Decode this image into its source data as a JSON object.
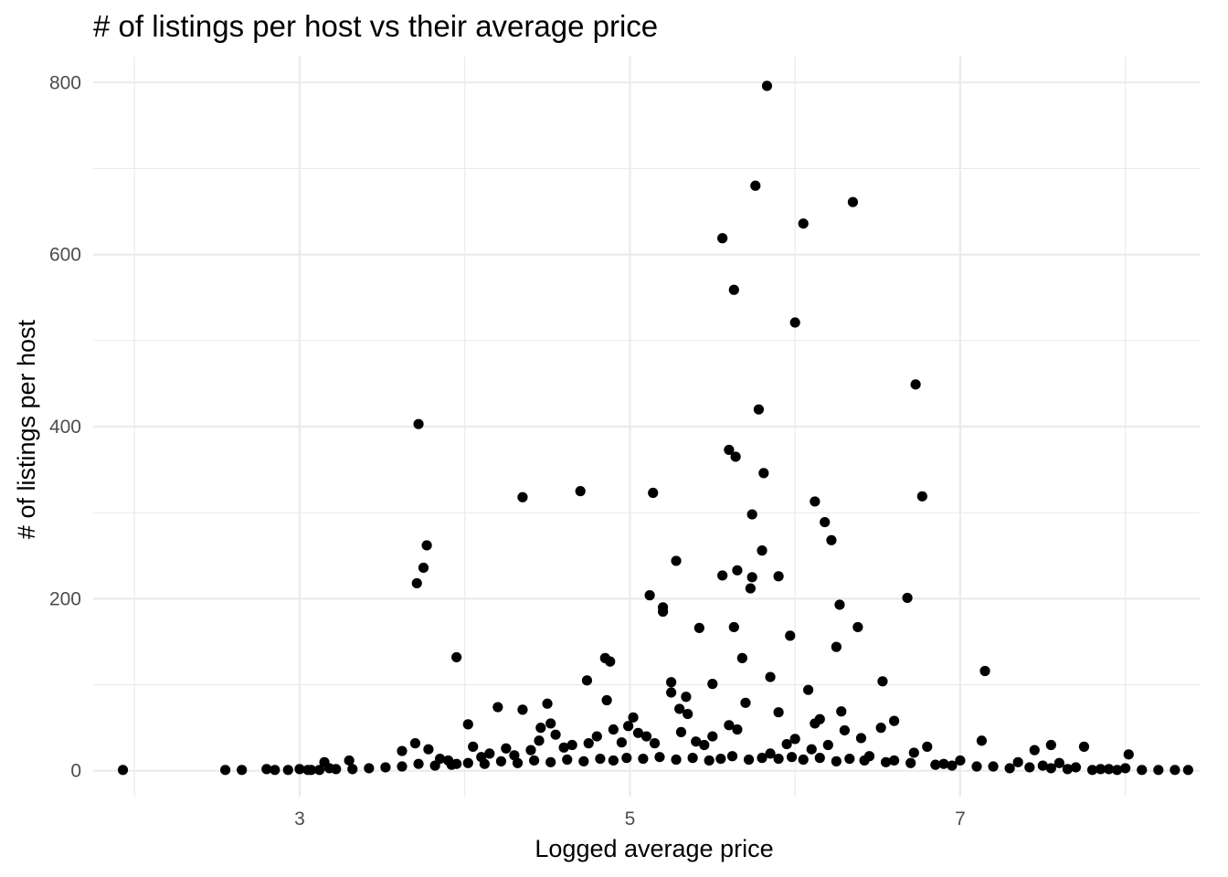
{
  "chart_data": {
    "type": "scatter",
    "title": "# of listings per host vs their average price",
    "xlabel": "Logged average price",
    "ylabel": "# of listings per host",
    "xlim": [
      1.75,
      8.45
    ],
    "ylim": [
      -30,
      830
    ],
    "x_major_ticks": [
      3,
      5,
      7
    ],
    "x_major_tick_labels": [
      "3",
      "5",
      "7"
    ],
    "x_minor_ticks": [
      2,
      4,
      6,
      8
    ],
    "y_major_ticks": [
      0,
      200,
      400,
      600,
      800
    ],
    "y_major_tick_labels": [
      "0",
      "200",
      "400",
      "600",
      "800"
    ],
    "y_minor_ticks": [
      100,
      300,
      500,
      700
    ],
    "grid": true,
    "legend": "none",
    "point_color": "#000000",
    "points": [
      [
        1.93,
        1
      ],
      [
        2.55,
        1
      ],
      [
        2.65,
        1
      ],
      [
        2.8,
        2
      ],
      [
        2.85,
        1
      ],
      [
        2.93,
        1
      ],
      [
        3.0,
        2
      ],
      [
        3.07,
        1
      ],
      [
        3.15,
        10
      ],
      [
        3.3,
        12
      ],
      [
        3.7,
        32
      ],
      [
        3.72,
        403
      ],
      [
        3.71,
        218
      ],
      [
        3.75,
        236
      ],
      [
        3.77,
        262
      ],
      [
        3.62,
        23
      ],
      [
        3.78,
        25
      ],
      [
        3.95,
        132
      ],
      [
        4.02,
        54
      ],
      [
        4.05,
        28
      ],
      [
        4.2,
        74
      ],
      [
        4.35,
        71
      ],
      [
        4.35,
        318
      ],
      [
        4.5,
        78
      ],
      [
        4.52,
        55
      ],
      [
        4.46,
        50
      ],
      [
        4.55,
        42
      ],
      [
        4.7,
        325
      ],
      [
        4.74,
        105
      ],
      [
        4.85,
        131
      ],
      [
        4.88,
        127
      ],
      [
        4.86,
        82
      ],
      [
        4.9,
        48
      ],
      [
        4.99,
        52
      ],
      [
        5.02,
        62
      ],
      [
        5.12,
        204
      ],
      [
        5.14,
        323
      ],
      [
        5.2,
        190
      ],
      [
        5.2,
        185
      ],
      [
        5.25,
        103
      ],
      [
        5.25,
        91
      ],
      [
        5.28,
        244
      ],
      [
        5.31,
        45
      ],
      [
        5.34,
        86
      ],
      [
        5.42,
        166
      ],
      [
        5.5,
        101
      ],
      [
        5.56,
        619
      ],
      [
        5.56,
        227
      ],
      [
        5.6,
        373
      ],
      [
        5.63,
        559
      ],
      [
        5.63,
        167
      ],
      [
        5.64,
        365
      ],
      [
        5.65,
        233
      ],
      [
        5.68,
        131
      ],
      [
        5.7,
        79
      ],
      [
        5.73,
        212
      ],
      [
        5.76,
        680
      ],
      [
        5.74,
        298
      ],
      [
        5.74,
        225
      ],
      [
        5.78,
        420
      ],
      [
        5.8,
        256
      ],
      [
        5.81,
        346
      ],
      [
        5.83,
        796
      ],
      [
        5.85,
        109
      ],
      [
        5.9,
        226
      ],
      [
        5.9,
        68
      ],
      [
        5.97,
        157
      ],
      [
        6.0,
        521
      ],
      [
        6.05,
        636
      ],
      [
        6.08,
        94
      ],
      [
        6.12,
        313
      ],
      [
        6.18,
        289
      ],
      [
        6.22,
        268
      ],
      [
        6.25,
        144
      ],
      [
        6.27,
        193
      ],
      [
        6.35,
        661
      ],
      [
        6.38,
        167
      ],
      [
        6.28,
        69
      ],
      [
        6.53,
        104
      ],
      [
        6.6,
        58
      ],
      [
        6.68,
        201
      ],
      [
        6.73,
        449
      ],
      [
        6.77,
        319
      ],
      [
        7.15,
        116
      ],
      [
        7.13,
        35
      ],
      [
        7.45,
        24
      ],
      [
        7.55,
        30
      ],
      [
        7.75,
        28
      ],
      [
        8.02,
        19
      ],
      [
        6.0,
        37
      ],
      [
        6.12,
        55
      ],
      [
        6.15,
        60
      ],
      [
        6.3,
        47
      ],
      [
        6.52,
        50
      ],
      [
        6.72,
        21
      ],
      [
        6.8,
        28
      ],
      [
        5.5,
        40
      ],
      [
        5.6,
        53
      ],
      [
        5.4,
        34
      ],
      [
        5.3,
        72
      ],
      [
        5.35,
        66
      ],
      [
        5.1,
        40
      ],
      [
        5.15,
        32
      ],
      [
        4.75,
        32
      ],
      [
        4.95,
        33
      ],
      [
        4.65,
        30
      ],
      [
        4.6,
        27
      ],
      [
        4.4,
        24
      ],
      [
        4.25,
        26
      ],
      [
        4.15,
        20
      ],
      [
        3.9,
        12
      ],
      [
        3.85,
        14
      ],
      [
        3.95,
        8
      ],
      [
        4.1,
        16
      ],
      [
        4.3,
        18
      ],
      [
        4.45,
        35
      ],
      [
        4.8,
        40
      ],
      [
        5.05,
        44
      ],
      [
        5.45,
        30
      ],
      [
        5.65,
        48
      ],
      [
        5.85,
        20
      ],
      [
        5.95,
        31
      ],
      [
        6.1,
        25
      ],
      [
        6.2,
        30
      ],
      [
        6.4,
        38
      ],
      [
        6.45,
        17
      ],
      [
        6.6,
        12
      ],
      [
        6.9,
        8
      ],
      [
        7.0,
        12
      ],
      [
        7.2,
        5
      ],
      [
        7.35,
        10
      ],
      [
        7.5,
        6
      ],
      [
        7.6,
        9
      ],
      [
        7.7,
        4
      ],
      [
        7.85,
        2
      ],
      [
        7.9,
        2
      ],
      [
        8.0,
        3
      ],
      [
        8.1,
        1
      ],
      [
        8.2,
        1
      ],
      [
        8.3,
        1
      ],
      [
        8.38,
        1
      ],
      [
        7.95,
        1
      ],
      [
        7.8,
        1
      ],
      [
        7.65,
        2
      ],
      [
        7.55,
        3
      ],
      [
        7.42,
        4
      ],
      [
        7.3,
        3
      ],
      [
        7.1,
        5
      ],
      [
        6.95,
        6
      ],
      [
        6.85,
        7
      ],
      [
        6.7,
        9
      ],
      [
        6.55,
        10
      ],
      [
        6.42,
        12
      ],
      [
        6.33,
        14
      ],
      [
        6.25,
        11
      ],
      [
        6.15,
        15
      ],
      [
        6.05,
        13
      ],
      [
        5.98,
        16
      ],
      [
        5.9,
        14
      ],
      [
        5.8,
        15
      ],
      [
        5.72,
        13
      ],
      [
        5.62,
        17
      ],
      [
        5.55,
        14
      ],
      [
        5.48,
        12
      ],
      [
        5.38,
        15
      ],
      [
        5.28,
        13
      ],
      [
        5.18,
        16
      ],
      [
        5.08,
        14
      ],
      [
        4.98,
        15
      ],
      [
        4.9,
        12
      ],
      [
        4.82,
        14
      ],
      [
        4.72,
        11
      ],
      [
        4.62,
        13
      ],
      [
        4.52,
        10
      ],
      [
        4.42,
        12
      ],
      [
        4.32,
        9
      ],
      [
        4.22,
        11
      ],
      [
        4.12,
        8
      ],
      [
        4.02,
        9
      ],
      [
        3.92,
        7
      ],
      [
        3.82,
        6
      ],
      [
        3.72,
        8
      ],
      [
        3.62,
        5
      ],
      [
        3.52,
        4
      ],
      [
        3.42,
        3
      ],
      [
        3.32,
        2
      ],
      [
        3.22,
        2
      ],
      [
        3.12,
        1
      ],
      [
        3.05,
        1
      ],
      [
        3.18,
        3
      ]
    ]
  }
}
